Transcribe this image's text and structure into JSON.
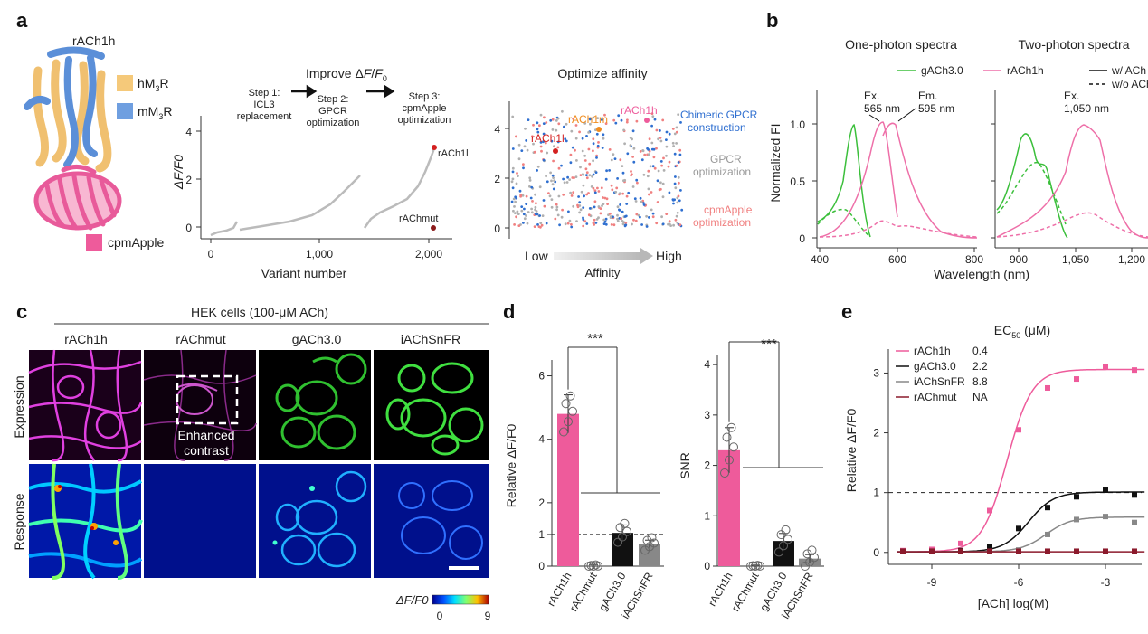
{
  "panel_labels": {
    "a": "a",
    "b": "b",
    "c": "c",
    "d": "d",
    "e": "e"
  },
  "panel_a": {
    "structure_title": "rACh1h",
    "legend": [
      {
        "label": "hM",
        "sub": "3",
        "suffix": "R",
        "color": "#f5c97a"
      },
      {
        "label": "mM",
        "sub": "3",
        "suffix": "R",
        "color": "#6f9fe0"
      },
      {
        "label": "cpmApple",
        "sub": "",
        "suffix": "",
        "color": "#ee5b9b"
      }
    ],
    "improve": {
      "title_pre": "Improve Δ",
      "title_f": "F",
      "title_slash": "/",
      "title_f0": "F",
      "title_sub": "0",
      "steps": [
        {
          "l1": "Step 1:",
          "l2": "ICL3",
          "l3": "replacement"
        },
        {
          "l1": "Step 2:",
          "l2": "GPCR",
          "l3": "optimization"
        },
        {
          "l1": "Step 3:",
          "l2": "cpmApple",
          "l3": "optimization"
        }
      ],
      "ylabel": "ΔF/F0",
      "xlabel": "Variant number",
      "xticks": [
        "0",
        "1,000",
        "2,000"
      ],
      "yticks": [
        "0",
        "2",
        "4"
      ],
      "point_labels": [
        "rACh1l",
        "rAChmut"
      ]
    },
    "affinity": {
      "title": "Optimize affinity",
      "yticks": [
        "0",
        "2",
        "4"
      ],
      "x_low": "Low",
      "x_high": "High",
      "xlabel": "Affinity",
      "point_labels": [
        {
          "text": "rACh1l",
          "color": "#d42020"
        },
        {
          "text": "rACh1m",
          "color": "#f08c1e"
        },
        {
          "text": "rACh1h",
          "color": "#ee5b9b"
        }
      ],
      "groups": [
        {
          "l1": "Chimeric GPCR",
          "l2": "construction",
          "color": "#2f6fd0"
        },
        {
          "l1": "GPCR",
          "l2": "optimization",
          "color": "#999999"
        },
        {
          "l1": "cpmApple",
          "l2": "optimization",
          "color": "#f08080"
        }
      ]
    }
  },
  "panel_b": {
    "title_one": "One-photon spectra",
    "title_two": "Two-photon spectra",
    "legend": [
      {
        "label": "gACh3.0",
        "color": "#3bbf3b"
      },
      {
        "label": "rACh1h",
        "color": "#ee6fa8"
      },
      {
        "label": "w/ ACh",
        "style": "solid"
      },
      {
        "label": "w/o ACh",
        "style": "dashed"
      }
    ],
    "ylabel": "Normalized FI",
    "xlabel": "Wavelength (nm)",
    "yticks": [
      "0",
      "0.5",
      "1.0"
    ],
    "xticks_one": [
      "400",
      "600",
      "800"
    ],
    "xticks_two": [
      "900",
      "1,050",
      "1,200"
    ],
    "annot_ex": {
      "l1": "Ex.",
      "l2": "565 nm"
    },
    "annot_em": {
      "l1": "Em.",
      "l2": "595 nm"
    },
    "annot_ex2": {
      "l1": "Ex.",
      "l2": "1,050 nm"
    }
  },
  "panel_c": {
    "title": "HEK cells (100-μM ACh)",
    "columns": [
      "rACh1h",
      "rAChmut",
      "gACh3.0",
      "iAChSnFR"
    ],
    "rows": [
      "Expression",
      "Response"
    ],
    "inset_l1": "Enhanced",
    "inset_l2": "contrast",
    "cbar_label": "ΔF/F0",
    "cbar_min": "0",
    "cbar_max": "9"
  },
  "panel_d": {
    "chart_data": [
      {
        "type": "bar",
        "categories": [
          "rACh1h",
          "rAChmut",
          "gACh3.0",
          "iAChSnFR"
        ],
        "values": [
          4.8,
          0.0,
          1.05,
          0.7
        ],
        "errors": [
          0.6,
          0.05,
          0.25,
          0.12
        ],
        "ylabel": "Relative ΔF/F0",
        "ylim": [
          0,
          6.5
        ],
        "yticks": [
          "0",
          "1",
          "2",
          "4",
          "6"
        ],
        "significance": "***"
      },
      {
        "type": "bar",
        "categories": [
          "rACh1h",
          "rAChmut",
          "gACh3.0",
          "iAChSnFR"
        ],
        "values": [
          2.3,
          0.0,
          0.5,
          0.15
        ],
        "errors": [
          0.45,
          0.02,
          0.15,
          0.08
        ],
        "ylabel": "SNR",
        "ylim": [
          0,
          4.2
        ],
        "yticks": [
          "0",
          "1",
          "2",
          "3",
          "4"
        ],
        "significance": "***"
      }
    ],
    "bar_colors": [
      "#ee5b9b",
      "#ffffff",
      "#111111",
      "#888888"
    ]
  },
  "panel_e": {
    "chart_data": {
      "type": "line",
      "title_pre": "EC",
      "title_sub": "50",
      "title_post": " (μM)",
      "xlabel": "[ACh] log(M)",
      "ylabel": "Relative ΔF/F0",
      "xticks": [
        "-9",
        "-6",
        "-3"
      ],
      "yticks": [
        "0",
        "1",
        "2",
        "3"
      ],
      "xlim": [
        -10.5,
        -1.5
      ],
      "ylim": [
        -0.2,
        3.4
      ],
      "series": [
        {
          "name": "rACh1h",
          "ec50": "0.4",
          "color": "#ee5b9b",
          "top": 3.05,
          "logec": -6.4,
          "hill": 1.0,
          "x": [
            -10,
            -9,
            -8,
            -7,
            -6,
            -5,
            -4,
            -3,
            -2
          ],
          "y": [
            0.03,
            0.05,
            0.15,
            0.7,
            2.05,
            2.75,
            2.9,
            3.1,
            3.05
          ]
        },
        {
          "name": "gACh3.0",
          "ec50": "2.2",
          "color": "#111111",
          "top": 1.0,
          "logec": -5.66,
          "hill": 1.0,
          "x": [
            -10,
            -9,
            -8,
            -7,
            -6,
            -5,
            -4,
            -3,
            -2
          ],
          "y": [
            0.02,
            0.02,
            0.03,
            0.1,
            0.4,
            0.75,
            0.93,
            1.04,
            0.96
          ]
        },
        {
          "name": "iAChSnFR",
          "ec50": "8.8",
          "color": "#888888",
          "top": 0.58,
          "logec": -5.06,
          "hill": 1.0,
          "x": [
            -10,
            -9,
            -8,
            -7,
            -6,
            -5,
            -4,
            -3,
            -2
          ],
          "y": [
            0.02,
            0.02,
            0.02,
            0.02,
            0.04,
            0.3,
            0.55,
            0.6,
            0.5
          ]
        },
        {
          "name": "rAChmut",
          "ec50": "NA",
          "color": "#8b1a2c",
          "top": 0.0,
          "logec": -6.0,
          "hill": 1.0,
          "x": [
            -10,
            -9,
            -8,
            -7,
            -6,
            -5,
            -4,
            -3,
            -2
          ],
          "y": [
            0.02,
            0.02,
            0.02,
            0.02,
            0.02,
            0.02,
            0.02,
            0.02,
            0.02
          ]
        }
      ]
    }
  }
}
